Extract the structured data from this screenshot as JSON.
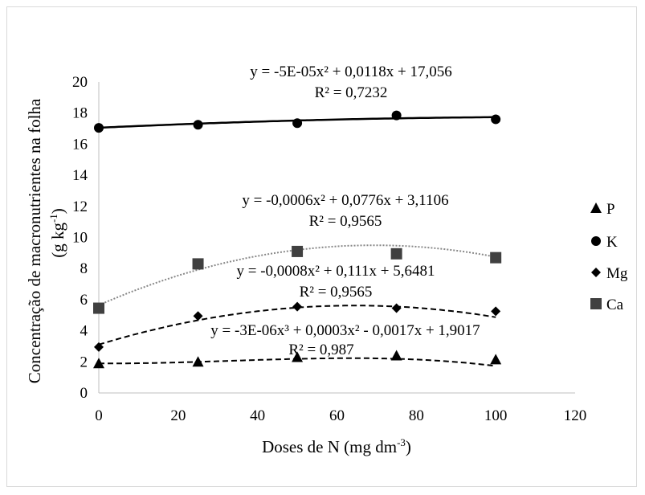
{
  "chart_data": {
    "type": "scatter",
    "xlabel": "Doses de N (mg dm-3)",
    "ylabel_line1": "Concentração de macronutrientes na folha",
    "ylabel_line2": "(g kg-1)",
    "xlim": [
      0,
      120
    ],
    "ylim": [
      0,
      20
    ],
    "x_ticks": [
      0,
      20,
      40,
      60,
      80,
      100,
      120
    ],
    "y_ticks": [
      0,
      2,
      4,
      6,
      8,
      10,
      12,
      14,
      16,
      18,
      20
    ],
    "grid": false,
    "legend_position": "right",
    "x": [
      0,
      25,
      50,
      75,
      100
    ],
    "series": [
      {
        "name": "P",
        "marker": "triangle",
        "values": [
          1.9,
          2.0,
          2.3,
          2.4,
          2.15
        ],
        "trend_style": "dashed",
        "trend_color": "#000000",
        "trend_coeffs": [
          1.9017,
          -0.0017,
          0.0003,
          -3e-06
        ],
        "equation": "y = -3E-06x³ + 0,0003x² - 0,0017x + 1,9017",
        "r2": "R² = 0,987"
      },
      {
        "name": "K",
        "marker": "circle",
        "values": [
          17.05,
          17.25,
          17.35,
          17.85,
          17.6
        ],
        "trend_style": "solid",
        "trend_color": "#000000",
        "trend_coeffs": [
          17.056,
          0.0118,
          -5e-05
        ],
        "equation": "y = -5E-05x² + 0,0118x + 17,056",
        "r2": "R² = 0,7232"
      },
      {
        "name": "Mg",
        "marker": "diamond",
        "values": [
          2.95,
          4.95,
          5.55,
          5.45,
          5.25
        ],
        "trend_style": "dashed",
        "trend_color": "#000000",
        "trend_coeffs": [
          3.1106,
          0.0776,
          -0.0006
        ],
        "equation": "y = -0,0006x² + 0,0776x + 3,1106",
        "r2": "R² = 0,9565"
      },
      {
        "name": "Ca",
        "marker": "square",
        "values": [
          5.45,
          8.3,
          9.1,
          8.95,
          8.7
        ],
        "trend_style": "dotted",
        "trend_color": "#888888",
        "trend_coeffs": [
          5.6481,
          0.111,
          -0.0008
        ],
        "equation": "y = -0,0008x² + 0,111x + 5,6481",
        "r2": "R² = 0,9565"
      }
    ]
  }
}
